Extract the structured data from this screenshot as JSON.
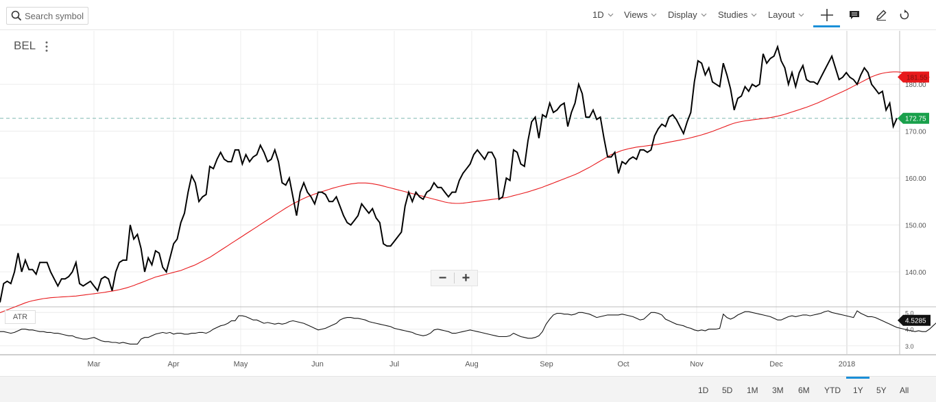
{
  "toolbar": {
    "search_placeholder": "Search symbol",
    "menus": [
      "1D",
      "Views",
      "Display",
      "Studies",
      "Layout"
    ],
    "icons": [
      "crosshair-icon",
      "comment-icon",
      "pencil-icon",
      "reset-icon"
    ]
  },
  "symbol": "BEL",
  "zoom": {
    "minus": "−",
    "plus": "+"
  },
  "atr_label": "ATR",
  "ranges": [
    "1D",
    "5D",
    "1M",
    "3M",
    "6M",
    "YTD",
    "1Y",
    "5Y",
    "All"
  ],
  "active_range": "1Y",
  "colors": {
    "price": "#000000",
    "ma": "#e8191c",
    "last_price_bg": "#19a04b",
    "ma_badge_bg": "#e8191c",
    "accent": "#1a8fd8"
  },
  "chart_data": [
    {
      "type": "line",
      "name": "price",
      "x_labels": [
        "Mar",
        "Apr",
        "May",
        "Jun",
        "Jul",
        "Aug",
        "Sep",
        "Oct",
        "Nov",
        "Dec",
        "2018"
      ],
      "y_ticks": [
        "140.00",
        "150.00",
        "160.00",
        "170.00",
        "180.00"
      ],
      "ylim": [
        132.7,
        191.4
      ],
      "last_price": "172.75",
      "ma_badge": "181.55",
      "series": [
        {
          "values": [
            133.5,
            137.5,
            138,
            137.5,
            140,
            144,
            140,
            142.5,
            140.5,
            140.5,
            139.5,
            142,
            142,
            142,
            140,
            138.5,
            137,
            138.5,
            138.5,
            139,
            140,
            142,
            137.5,
            137,
            137.5,
            138,
            137,
            136,
            138.5,
            139,
            138.5,
            136,
            140,
            142,
            142.5,
            142.5,
            150,
            147,
            148,
            145,
            140,
            143,
            141.5,
            144.5,
            144,
            141,
            140,
            143,
            146,
            147,
            150.5,
            152.5,
            157,
            160.5,
            159,
            155,
            156,
            156.5,
            162.5,
            162,
            164,
            165.5,
            164,
            163.5,
            163.5,
            166,
            166,
            163,
            165,
            163.5,
            164.5,
            165,
            167,
            165.5,
            163.5,
            164,
            166,
            163.5,
            159,
            158.5,
            160,
            156,
            152,
            157,
            159,
            157,
            156,
            154.5,
            157,
            157,
            156.5,
            155,
            155,
            156,
            154,
            152,
            150.5,
            150,
            151,
            152,
            154.5,
            153.5,
            152.5,
            153.5,
            151.5,
            150.5,
            146,
            145.5,
            145.5,
            146.5,
            147.5,
            148.5,
            154,
            157,
            155,
            157,
            156,
            155.5,
            157,
            157.5,
            159,
            158,
            158,
            157,
            156,
            157,
            157,
            159.5,
            161,
            162,
            163,
            165,
            166,
            165,
            164,
            165.5,
            165.5,
            164,
            155.5,
            156,
            160,
            159.5,
            166,
            165.5,
            163,
            162.5,
            168,
            172,
            173,
            168.5,
            173.5,
            173,
            176,
            174,
            174.5,
            175.5,
            176,
            171,
            174,
            176,
            180,
            178,
            173,
            173,
            174.5,
            172.5,
            173,
            168.5,
            164.5,
            164.5,
            165.5,
            161,
            163.5,
            163,
            164,
            164.5,
            164,
            166,
            166,
            165.5,
            166,
            169,
            170.5,
            171.5,
            171,
            173,
            173.5,
            172.5,
            171,
            169.5,
            172,
            174,
            180.5,
            185,
            184.5,
            182,
            183.5,
            180.5,
            180,
            179.5,
            184.5,
            182,
            179,
            174.5,
            177,
            177.5,
            179.5,
            178.5,
            180,
            179.5,
            180,
            186.5,
            184.5,
            185.5,
            186,
            188,
            185,
            183.5,
            180,
            182.5,
            179.5,
            182.5,
            184,
            181,
            180.5,
            180.5,
            180,
            181.5,
            183,
            184.5,
            186,
            183.5,
            181,
            181.5,
            182.5,
            181.5,
            181,
            180,
            182,
            183.5,
            182.5,
            180,
            179,
            178,
            178.5,
            174.5,
            176,
            171,
            172.75
          ]
        },
        {
          "values": [
            131.3,
            131.6,
            131.9,
            132.2,
            132.5,
            132.8,
            133.1,
            133.4,
            133.65,
            133.85,
            134,
            134.15,
            134.3,
            134.4,
            134.5,
            134.55,
            134.6,
            134.65,
            134.7,
            134.75,
            134.8,
            134.85,
            134.95,
            135.05,
            135.15,
            135.25,
            135.35,
            135.45,
            135.55,
            135.65,
            135.8,
            135.9,
            136.05,
            136.2,
            136.4,
            136.6,
            136.85,
            137.1,
            137.4,
            137.7,
            138,
            138.3,
            138.6,
            138.9,
            139.1,
            139.3,
            139.5,
            139.7,
            139.9,
            140.1,
            140.3,
            140.6,
            140.9,
            141.2,
            141.5,
            141.9,
            142.3,
            142.7,
            143.1,
            143.6,
            144.1,
            144.6,
            145.1,
            145.6,
            146.1,
            146.6,
            147.1,
            147.6,
            148.1,
            148.6,
            149.1,
            149.6,
            150.1,
            150.6,
            151.1,
            151.6,
            152.1,
            152.6,
            153.1,
            153.6,
            154.05,
            154.5,
            154.9,
            155.3,
            155.65,
            156,
            156.3,
            156.6,
            156.85,
            157.1,
            157.35,
            157.6,
            157.85,
            158.05,
            158.25,
            158.45,
            158.6,
            158.75,
            158.85,
            158.95,
            158.95,
            158.95,
            158.9,
            158.8,
            158.65,
            158.5,
            158.3,
            158.1,
            157.9,
            157.7,
            157.5,
            157.3,
            157.1,
            156.9,
            156.7,
            156.5,
            156.3,
            156.1,
            155.9,
            155.7,
            155.5,
            155.3,
            155.1,
            154.9,
            154.75,
            154.65,
            154.6,
            154.6,
            154.65,
            154.75,
            154.85,
            154.95,
            155.05,
            155.15,
            155.25,
            155.35,
            155.45,
            155.55,
            155.65,
            155.75,
            155.85,
            156.05,
            156.25,
            156.45,
            156.65,
            156.85,
            157.05,
            157.3,
            157.55,
            157.8,
            158.05,
            158.35,
            158.65,
            158.95,
            159.25,
            159.55,
            159.85,
            160.15,
            160.45,
            160.75,
            161.1,
            161.5,
            161.9,
            162.3,
            162.75,
            163.2,
            163.65,
            164.1,
            164.55,
            165,
            165.3,
            165.6,
            165.9,
            166.1,
            166.3,
            166.45,
            166.6,
            166.7,
            166.8,
            166.9,
            167,
            167.1,
            167.2,
            167.35,
            167.5,
            167.65,
            167.8,
            167.95,
            168.1,
            168.25,
            168.4,
            168.6,
            168.8,
            169,
            169.2,
            169.45,
            169.7,
            169.95,
            170.25,
            170.55,
            170.85,
            171.15,
            171.45,
            171.7,
            171.9,
            172.05,
            172.2,
            172.3,
            172.4,
            172.5,
            172.6,
            172.7,
            172.8,
            172.9,
            173.05,
            173.2,
            173.4,
            173.6,
            173.85,
            174.1,
            174.35,
            174.6,
            174.85,
            175.1,
            175.4,
            175.7,
            176,
            176.35,
            176.7,
            177.05,
            177.4,
            177.75,
            178.1,
            178.45,
            178.8,
            179.2,
            179.6,
            180,
            180.4,
            180.8,
            181.2,
            181.6,
            181.9,
            182.15,
            182.35,
            182.5,
            182.6,
            182.65,
            182.65,
            182.6,
            182.5,
            182.35,
            182.2,
            182.05,
            181.9,
            181.75,
            181.6,
            181.5
          ]
        }
      ]
    },
    {
      "type": "line",
      "name": "ATR",
      "y_ticks": [
        "3.0",
        "4.0",
        "5.0"
      ],
      "ylim": [
        2.5,
        5.3
      ],
      "last_value": "4.5285",
      "series": [
        {
          "values": [
            3.85,
            3.85,
            3.8,
            3.75,
            3.8,
            3.9,
            4.0,
            4.0,
            3.95,
            3.95,
            3.9,
            3.85,
            3.85,
            3.8,
            3.8,
            3.75,
            3.75,
            3.7,
            3.65,
            3.6,
            3.6,
            3.5,
            3.45,
            3.4,
            3.4,
            3.45,
            3.5,
            3.4,
            3.3,
            3.25,
            3.25,
            3.2,
            3.2,
            3.15,
            3.2,
            3.15,
            3.1,
            3.1,
            3.1,
            3.4,
            3.5,
            3.5,
            3.6,
            3.7,
            3.75,
            3.8,
            3.75,
            3.8,
            3.7,
            3.75,
            3.75,
            3.7,
            3.7,
            3.75,
            3.75,
            3.8,
            3.8,
            3.75,
            3.85,
            4.0,
            4.1,
            4.2,
            4.25,
            4.35,
            4.5,
            4.5,
            4.8,
            4.8,
            4.75,
            4.65,
            4.55,
            4.55,
            4.45,
            4.35,
            4.4,
            4.35,
            4.3,
            4.35,
            4.3,
            4.35,
            4.45,
            4.5,
            4.45,
            4.4,
            4.35,
            4.25,
            4.15,
            4.05,
            3.95,
            4.0,
            4.05,
            4.15,
            4.25,
            4.35,
            4.55,
            4.65,
            4.7,
            4.7,
            4.65,
            4.65,
            4.6,
            4.55,
            4.45,
            4.4,
            4.35,
            4.3,
            4.25,
            4.2,
            4.15,
            4.05,
            4.0,
            3.95,
            3.9,
            3.85,
            3.8,
            3.7,
            3.65,
            3.6,
            3.65,
            3.75,
            3.95,
            4.0,
            3.95,
            3.9,
            3.85,
            3.75,
            3.75,
            3.8,
            3.85,
            3.9,
            3.95,
            3.9,
            3.85,
            3.8,
            3.75,
            3.7,
            3.65,
            3.6,
            3.55,
            3.55,
            3.55,
            3.6,
            3.75,
            3.65,
            3.55,
            3.5,
            3.45,
            3.45,
            3.5,
            3.6,
            3.85,
            4.3,
            4.6,
            4.85,
            4.95,
            4.95,
            4.9,
            4.9,
            4.85,
            4.9,
            5.0,
            5.0,
            4.95,
            4.9,
            4.8,
            4.7,
            4.75,
            4.8,
            4.85,
            4.85,
            4.85,
            4.85,
            4.9,
            4.85,
            4.8,
            4.75,
            4.65,
            4.55,
            4.6,
            4.8,
            5.0,
            5.0,
            4.95,
            4.85,
            4.6,
            4.5,
            4.4,
            4.3,
            4.25,
            4.2,
            4.1,
            4.05,
            3.95,
            3.9,
            3.95,
            3.9,
            4.0,
            4.0,
            4.0,
            4.05,
            4.9,
            4.7,
            4.6,
            4.7,
            4.85,
            4.95,
            5.05,
            5.05,
            5.0,
            4.95,
            4.9,
            4.85,
            4.8,
            4.75,
            4.65,
            4.55,
            4.55,
            4.65,
            4.75,
            4.8,
            4.75,
            4.8,
            4.85,
            4.85,
            4.8,
            4.85,
            4.9,
            4.95,
            5.05,
            5.1,
            5.0,
            4.95,
            4.9,
            4.85,
            4.8,
            4.75,
            4.7,
            5.1,
            4.95,
            4.85,
            4.75,
            4.75,
            4.7,
            4.6,
            4.5,
            4.4,
            4.3,
            4.2,
            4.1,
            4.05,
            4.0,
            3.95,
            3.9,
            3.85,
            3.9,
            3.85,
            3.85,
            4.0,
            4.2,
            4.4,
            4.5285
          ]
        }
      ]
    }
  ]
}
